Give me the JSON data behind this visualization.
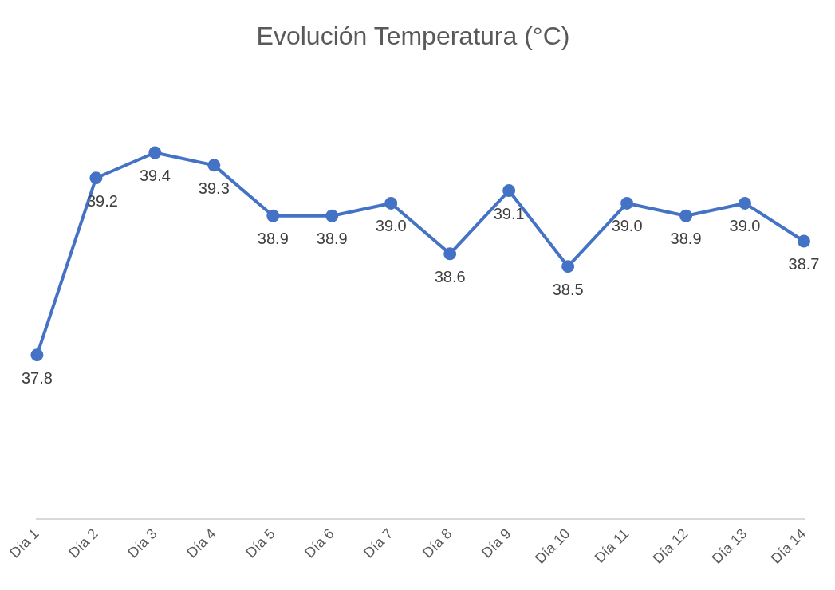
{
  "chart_data": {
    "type": "line",
    "title": "Evolución Temperatura (°C)",
    "categories": [
      "Día 1",
      "Día 2",
      "Día 3",
      "Día 4",
      "Día 5",
      "Día 6",
      "Día 7",
      "Día 8",
      "Día 9",
      "Día 10",
      "Día 11",
      "Día 12",
      "Día 13",
      "Día 14"
    ],
    "series": [
      {
        "color": "#4472c4",
        "values": [
          37.8,
          39.2,
          39.4,
          39.3,
          38.9,
          38.9,
          39.0,
          38.6,
          39.1,
          38.5,
          39.0,
          38.9,
          39.0,
          38.7
        ],
        "value_labels": [
          "37.8",
          "39.2",
          "39.4",
          "39.3",
          "38.9",
          "38.9",
          "39.0",
          "38.6",
          "39.1",
          "38.5",
          "39.0",
          "38.9",
          "39.0",
          "38.7"
        ]
      }
    ],
    "tick_labels": "x",
    "marker": "circle",
    "grid": false,
    "legend": false
  }
}
